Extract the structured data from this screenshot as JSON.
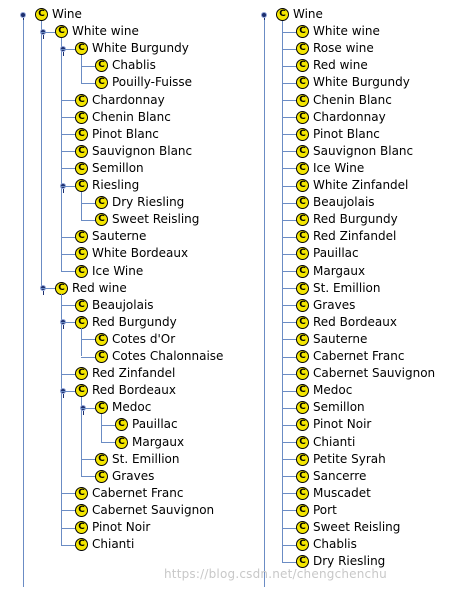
{
  "left_tree": [
    {
      "label": "Wine",
      "depth": 0,
      "expanded": true
    },
    {
      "label": "White wine",
      "depth": 1,
      "expanded": true
    },
    {
      "label": "White Burgundy",
      "depth": 2,
      "expanded": true
    },
    {
      "label": "Chablis",
      "depth": 3
    },
    {
      "label": "Pouilly-Fuisse",
      "depth": 3
    },
    {
      "label": "Chardonnay",
      "depth": 2
    },
    {
      "label": "Chenin Blanc",
      "depth": 2
    },
    {
      "label": "Pinot Blanc",
      "depth": 2
    },
    {
      "label": "Sauvignon Blanc",
      "depth": 2
    },
    {
      "label": "Semillon",
      "depth": 2
    },
    {
      "label": "Riesling",
      "depth": 2,
      "expanded": true
    },
    {
      "label": "Dry Riesling",
      "depth": 3
    },
    {
      "label": "Sweet Reisling",
      "depth": 3
    },
    {
      "label": "Sauterne",
      "depth": 2
    },
    {
      "label": "White Bordeaux",
      "depth": 2
    },
    {
      "label": "Ice Wine",
      "depth": 2
    },
    {
      "label": "Red wine",
      "depth": 1,
      "expanded": true
    },
    {
      "label": "Beaujolais",
      "depth": 2
    },
    {
      "label": "Red Burgundy",
      "depth": 2,
      "expanded": true
    },
    {
      "label": "Cotes d'Or",
      "depth": 3
    },
    {
      "label": "Cotes Chalonnaise",
      "depth": 3
    },
    {
      "label": "Red Zinfandel",
      "depth": 2
    },
    {
      "label": "Red Bordeaux",
      "depth": 2,
      "expanded": true
    },
    {
      "label": "Medoc",
      "depth": 3,
      "expanded": true
    },
    {
      "label": "Pauillac",
      "depth": 4
    },
    {
      "label": "Margaux",
      "depth": 4
    },
    {
      "label": "St. Emillion",
      "depth": 3
    },
    {
      "label": "Graves",
      "depth": 3
    },
    {
      "label": "Cabernet Franc",
      "depth": 2
    },
    {
      "label": "Cabernet Sauvignon",
      "depth": 2
    },
    {
      "label": "Pinot Noir",
      "depth": 2
    },
    {
      "label": "Chianti",
      "depth": 2
    }
  ],
  "right_tree": [
    {
      "label": "Wine",
      "depth": 0,
      "expanded": true
    },
    {
      "label": "White wine",
      "depth": 1
    },
    {
      "label": "Rose wine",
      "depth": 1
    },
    {
      "label": "Red wine",
      "depth": 1
    },
    {
      "label": "White Burgundy",
      "depth": 1
    },
    {
      "label": "Chenin Blanc",
      "depth": 1
    },
    {
      "label": "Chardonnay",
      "depth": 1
    },
    {
      "label": "Pinot Blanc",
      "depth": 1
    },
    {
      "label": "Sauvignon Blanc",
      "depth": 1
    },
    {
      "label": "Ice Wine",
      "depth": 1
    },
    {
      "label": "White Zinfandel",
      "depth": 1
    },
    {
      "label": "Beaujolais",
      "depth": 1
    },
    {
      "label": "Red Burgundy",
      "depth": 1
    },
    {
      "label": "Red Zinfandel",
      "depth": 1
    },
    {
      "label": "Pauillac",
      "depth": 1
    },
    {
      "label": "Margaux",
      "depth": 1
    },
    {
      "label": "St. Emillion",
      "depth": 1
    },
    {
      "label": "Graves",
      "depth": 1
    },
    {
      "label": "Red Bordeaux",
      "depth": 1
    },
    {
      "label": "Sauterne",
      "depth": 1
    },
    {
      "label": "Cabernet Franc",
      "depth": 1
    },
    {
      "label": "Cabernet Sauvignon",
      "depth": 1
    },
    {
      "label": "Medoc",
      "depth": 1
    },
    {
      "label": "Semillon",
      "depth": 1
    },
    {
      "label": "Pinot Noir",
      "depth": 1
    },
    {
      "label": "Chianti",
      "depth": 1
    },
    {
      "label": "Petite Syrah",
      "depth": 1
    },
    {
      "label": "Sancerre",
      "depth": 1
    },
    {
      "label": "Muscadet",
      "depth": 1
    },
    {
      "label": "Port",
      "depth": 1
    },
    {
      "label": "Sweet Reisling",
      "depth": 1
    },
    {
      "label": "Chablis",
      "depth": 1
    },
    {
      "label": "Dry Riesling",
      "depth": 1
    }
  ],
  "icon_letter": "C",
  "icon_name": "class-icon",
  "colors": {
    "icon_fill": "#f4e600",
    "toggle": "#1d2f6e",
    "line": "#6b8cc4"
  },
  "watermark": "https://blog.csdn.net/chengchenchu"
}
